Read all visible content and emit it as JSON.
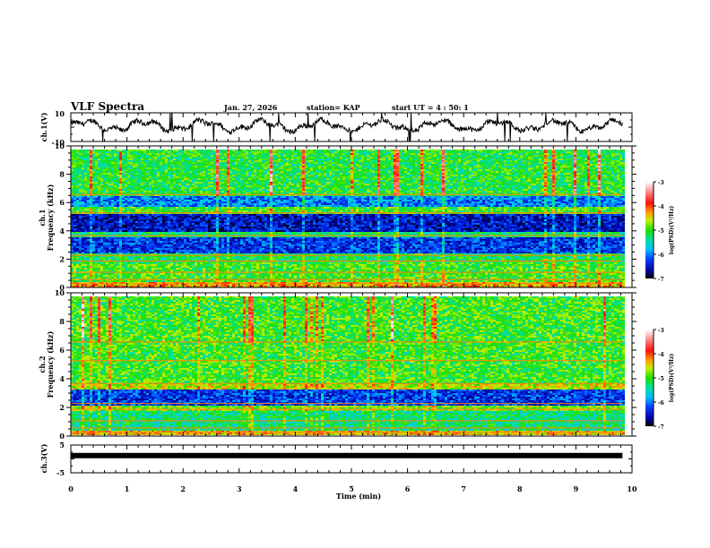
{
  "header": {
    "title": "VLF Spectra",
    "date": "Jan. 27, 2026",
    "station": "station= KAP",
    "start": "start  UT =   4 : 50: 1"
  },
  "chart_data": [
    {
      "type": "line",
      "name": "ch1-waveform",
      "ylabel": "ch.1(V)",
      "ylim": [
        -10,
        10
      ],
      "yticks": [
        "10",
        "-10"
      ],
      "xlim": [
        0,
        10
      ],
      "data_extent_min": 9.83,
      "description_values": "oscillating waveform around 0 V with amplitude ~5 V and occasional spikes to -10 V"
    },
    {
      "type": "heatmap",
      "name": "ch1-spectrogram",
      "ylabel_line1": "ch.1",
      "ylabel_line2": "Frequency  (kHz)",
      "ylim": [
        0,
        10
      ],
      "yticks": [
        "0",
        "2",
        "4",
        "6",
        "8",
        "10"
      ],
      "xlim": [
        0,
        10
      ],
      "bands": [
        {
          "from": 0,
          "to": 0.5,
          "level": -4.3
        },
        {
          "from": 0.5,
          "to": 1.8,
          "level": -5.0
        },
        {
          "from": 1.8,
          "to": 2.5,
          "level": -5.2
        },
        {
          "from": 2.5,
          "to": 3.6,
          "level": -6.3
        },
        {
          "from": 3.6,
          "to": 4.0,
          "level": -5.3
        },
        {
          "from": 4.0,
          "to": 5.2,
          "level": -6.5
        },
        {
          "from": 5.2,
          "to": 5.7,
          "level": -5.0
        },
        {
          "from": 5.7,
          "to": 6.5,
          "level": -6.0
        },
        {
          "from": 6.5,
          "to": 10,
          "level": -5.1
        }
      ]
    },
    {
      "type": "heatmap",
      "name": "ch2-spectrogram",
      "ylabel_line1": "ch.2",
      "ylabel_line2": "Frequency  (kHz)",
      "ylim": [
        0,
        10
      ],
      "yticks": [
        "0",
        "2",
        "4",
        "6",
        "8",
        "10"
      ],
      "xlim": [
        0,
        10
      ],
      "bands": [
        {
          "from": 0,
          "to": 0.5,
          "level": -4.4
        },
        {
          "from": 0.5,
          "to": 1.8,
          "level": -5.3
        },
        {
          "from": 1.8,
          "to": 2.2,
          "level": -4.8
        },
        {
          "from": 2.2,
          "to": 3.3,
          "level": -6.3
        },
        {
          "from": 3.3,
          "to": 3.7,
          "level": -4.6
        },
        {
          "from": 3.7,
          "to": 10,
          "level": -5.0
        }
      ]
    },
    {
      "type": "line",
      "name": "ch3-waveform",
      "ylabel": "ch.3(V)",
      "ylim": [
        -5,
        5
      ],
      "yticks": [
        "5",
        "-5"
      ],
      "xlim": [
        0,
        10
      ],
      "xlabel": "Time  (min)",
      "xticks": [
        "0",
        "1",
        "2",
        "3",
        "4",
        "5",
        "6",
        "7",
        "8",
        "9",
        "10"
      ],
      "level": 1.2,
      "data_extent_min": 9.83
    }
  ],
  "colorbar": {
    "label": "log(PSD)(V²/Hz)",
    "range": [
      -7,
      -3
    ],
    "ticks": [
      "-3",
      "-4",
      "-5",
      "-6",
      "-7"
    ]
  }
}
